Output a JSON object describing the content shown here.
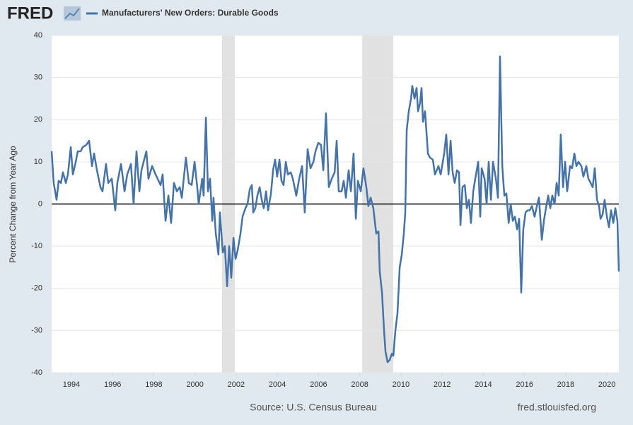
{
  "logo": "FRED",
  "chart_data": {
    "type": "line",
    "y_label": "Percent Change from Year Ago",
    "source": "Source: U.S. Census Bureau",
    "site": "fred.stlouisfed.org",
    "xlim": [
      1993.04,
      2020.58
    ],
    "xticks": [
      1994,
      1996,
      1998,
      2000,
      2002,
      2004,
      2006,
      2008,
      2010,
      2012,
      2014,
      2016,
      2018,
      2020
    ],
    "ylim": [
      -40,
      40
    ],
    "yticks": [
      -40,
      -30,
      -20,
      -10,
      0,
      10,
      20,
      30,
      40
    ],
    "grid": true,
    "recessions": [
      [
        2001.31,
        2001.93
      ],
      [
        2008.12,
        2009.63
      ]
    ],
    "x": [
      1993.04,
      1993.14,
      1993.28,
      1993.38,
      1993.49,
      1993.59,
      1993.73,
      1993.83,
      1993.97,
      1994.07,
      1994.21,
      1994.31,
      1994.45,
      1994.55,
      1994.72,
      1994.86,
      1995.0,
      1995.1,
      1995.24,
      1995.41,
      1995.51,
      1995.68,
      1995.79,
      1995.96,
      1996.13,
      1996.23,
      1996.41,
      1996.58,
      1996.71,
      1996.89,
      1997.02,
      1997.16,
      1997.3,
      1997.4,
      1997.64,
      1997.74,
      1997.92,
      1998.09,
      1998.33,
      1998.43,
      1998.57,
      1998.71,
      1998.84,
      1998.98,
      1999.12,
      1999.26,
      1999.36,
      1999.56,
      1999.7,
      1999.84,
      1999.98,
      2000.11,
      2000.18,
      2000.35,
      2000.42,
      2000.53,
      2000.63,
      2000.73,
      2000.84,
      2000.9,
      2001.01,
      2001.14,
      2001.21,
      2001.35,
      2001.45,
      2001.56,
      2001.66,
      2001.76,
      2001.87,
      2001.97,
      2002.07,
      2002.21,
      2002.31,
      2002.45,
      2002.55,
      2002.66,
      2002.76,
      2002.83,
      2002.93,
      2003.03,
      2003.14,
      2003.24,
      2003.34,
      2003.45,
      2003.55,
      2003.69,
      2003.79,
      2003.89,
      2003.99,
      2004.1,
      2004.2,
      2004.3,
      2004.41,
      2004.51,
      2004.65,
      2004.75,
      2004.92,
      2005.06,
      2005.2,
      2005.33,
      2005.47,
      2005.61,
      2005.75,
      2005.85,
      2005.99,
      2006.12,
      2006.23,
      2006.36,
      2006.5,
      2006.64,
      2006.78,
      2006.88,
      2006.98,
      2007.12,
      2007.22,
      2007.33,
      2007.46,
      2007.57,
      2007.7,
      2007.81,
      2007.91,
      2008.05,
      2008.18,
      2008.32,
      2008.42,
      2008.53,
      2008.66,
      2008.8,
      2008.91,
      2008.97,
      2009.08,
      2009.18,
      2009.25,
      2009.35,
      2009.45,
      2009.56,
      2009.63,
      2009.73,
      2009.83,
      2009.94,
      2010.04,
      2010.14,
      2010.21,
      2010.28,
      2010.38,
      2010.49,
      2010.55,
      2010.66,
      2010.76,
      2010.83,
      2010.93,
      2011.0,
      2011.07,
      2011.17,
      2011.31,
      2011.41,
      2011.55,
      2011.65,
      2011.82,
      2011.93,
      2012.1,
      2012.2,
      2012.31,
      2012.41,
      2012.51,
      2012.61,
      2012.72,
      2012.82,
      2012.89,
      2012.99,
      2013.1,
      2013.2,
      2013.3,
      2013.4,
      2013.51,
      2013.61,
      2013.75,
      2013.85,
      2013.92,
      2014.06,
      2014.16,
      2014.26,
      2014.37,
      2014.47,
      2014.61,
      2014.71,
      2014.81,
      2014.92,
      2015.02,
      2015.12,
      2015.23,
      2015.33,
      2015.43,
      2015.53,
      2015.64,
      2015.74,
      2015.84,
      2015.94,
      2016.05,
      2016.15,
      2016.25,
      2016.36,
      2016.49,
      2016.6,
      2016.7,
      2016.84,
      2016.94,
      2017.04,
      2017.15,
      2017.25,
      2017.35,
      2017.46,
      2017.56,
      2017.66,
      2017.76,
      2017.87,
      2017.97,
      2018.07,
      2018.21,
      2018.31,
      2018.42,
      2018.52,
      2018.62,
      2018.76,
      2018.86,
      2019.0,
      2019.1,
      2019.21,
      2019.31,
      2019.41,
      2019.52,
      2019.62,
      2019.69,
      2019.79,
      2019.89,
      2020.0,
      2020.1,
      2020.2,
      2020.31,
      2020.41,
      2020.51,
      2020.58
    ],
    "series": [
      {
        "name": "Manufacturers' New Orders: Durable Goods",
        "color": "#4572a7",
        "values": [
          12.5,
          5,
          1,
          5.5,
          5,
          7.5,
          5,
          7,
          13.5,
          7,
          10,
          12.5,
          12.5,
          13.5,
          14,
          15,
          9,
          12,
          8,
          4,
          3,
          9.5,
          5,
          6,
          -1.5,
          5,
          9.5,
          3,
          7,
          9.5,
          0,
          12.5,
          3,
          8,
          12.5,
          6,
          9,
          7,
          4.5,
          7,
          -4,
          2,
          -4.5,
          5,
          3,
          4,
          1.5,
          11,
          5,
          4.5,
          10,
          4,
          0,
          6,
          2,
          20.5,
          3,
          6,
          -4,
          1.5,
          -7,
          -12,
          -2,
          -11.5,
          -10,
          -19.5,
          -10,
          -17.5,
          -8,
          -13,
          -11,
          -7,
          -3,
          -1,
          0,
          3.5,
          4.5,
          -2,
          -1,
          2,
          4,
          1,
          -1,
          3,
          -1.5,
          2.5,
          8,
          10.5,
          6.5,
          10.5,
          5.5,
          4.5,
          10,
          7,
          7.5,
          6,
          2,
          6,
          9,
          -2,
          13,
          8.5,
          10,
          12.5,
          14.5,
          14,
          8,
          21.5,
          4,
          6,
          7.5,
          15,
          3,
          3,
          5.5,
          1.5,
          8,
          3,
          12,
          -3.5,
          5.5,
          3,
          8.5,
          4,
          -0.5,
          1.5,
          -1,
          -7,
          -6.5,
          -16,
          -21,
          -30,
          -35,
          -37.5,
          -37,
          -35.5,
          -36,
          -30,
          -26,
          -15,
          -12,
          -7,
          -2,
          17.5,
          22,
          25,
          28,
          25,
          27.5,
          22,
          24,
          27.5,
          19.5,
          22,
          12,
          11,
          10.5,
          7,
          9,
          7,
          12,
          16.5,
          7,
          15,
          7.5,
          5,
          8,
          7.5,
          -5,
          4,
          4.5,
          -1,
          1,
          -4.5,
          3,
          6,
          10,
          -3,
          8.5,
          6,
          0,
          10,
          1,
          10,
          6,
          1.5,
          35,
          9,
          2,
          2.5,
          -4.5,
          0,
          -4,
          -3,
          -6,
          -3.5,
          -21,
          -6,
          -2,
          -1.5,
          -1.5,
          -0.5,
          -3,
          -0.5,
          1.5,
          -8.5,
          -4,
          -1,
          2,
          -1,
          2,
          0,
          5,
          2,
          16.5,
          4,
          10,
          3,
          9,
          8.5,
          12,
          9,
          10,
          9,
          6.5,
          9,
          6,
          5,
          4,
          8.5,
          1,
          -0.5,
          -3.5,
          -2.5,
          1,
          -3,
          -5.5,
          -1.5,
          -4.5,
          -1,
          -4,
          -16
        ]
      }
    ]
  }
}
